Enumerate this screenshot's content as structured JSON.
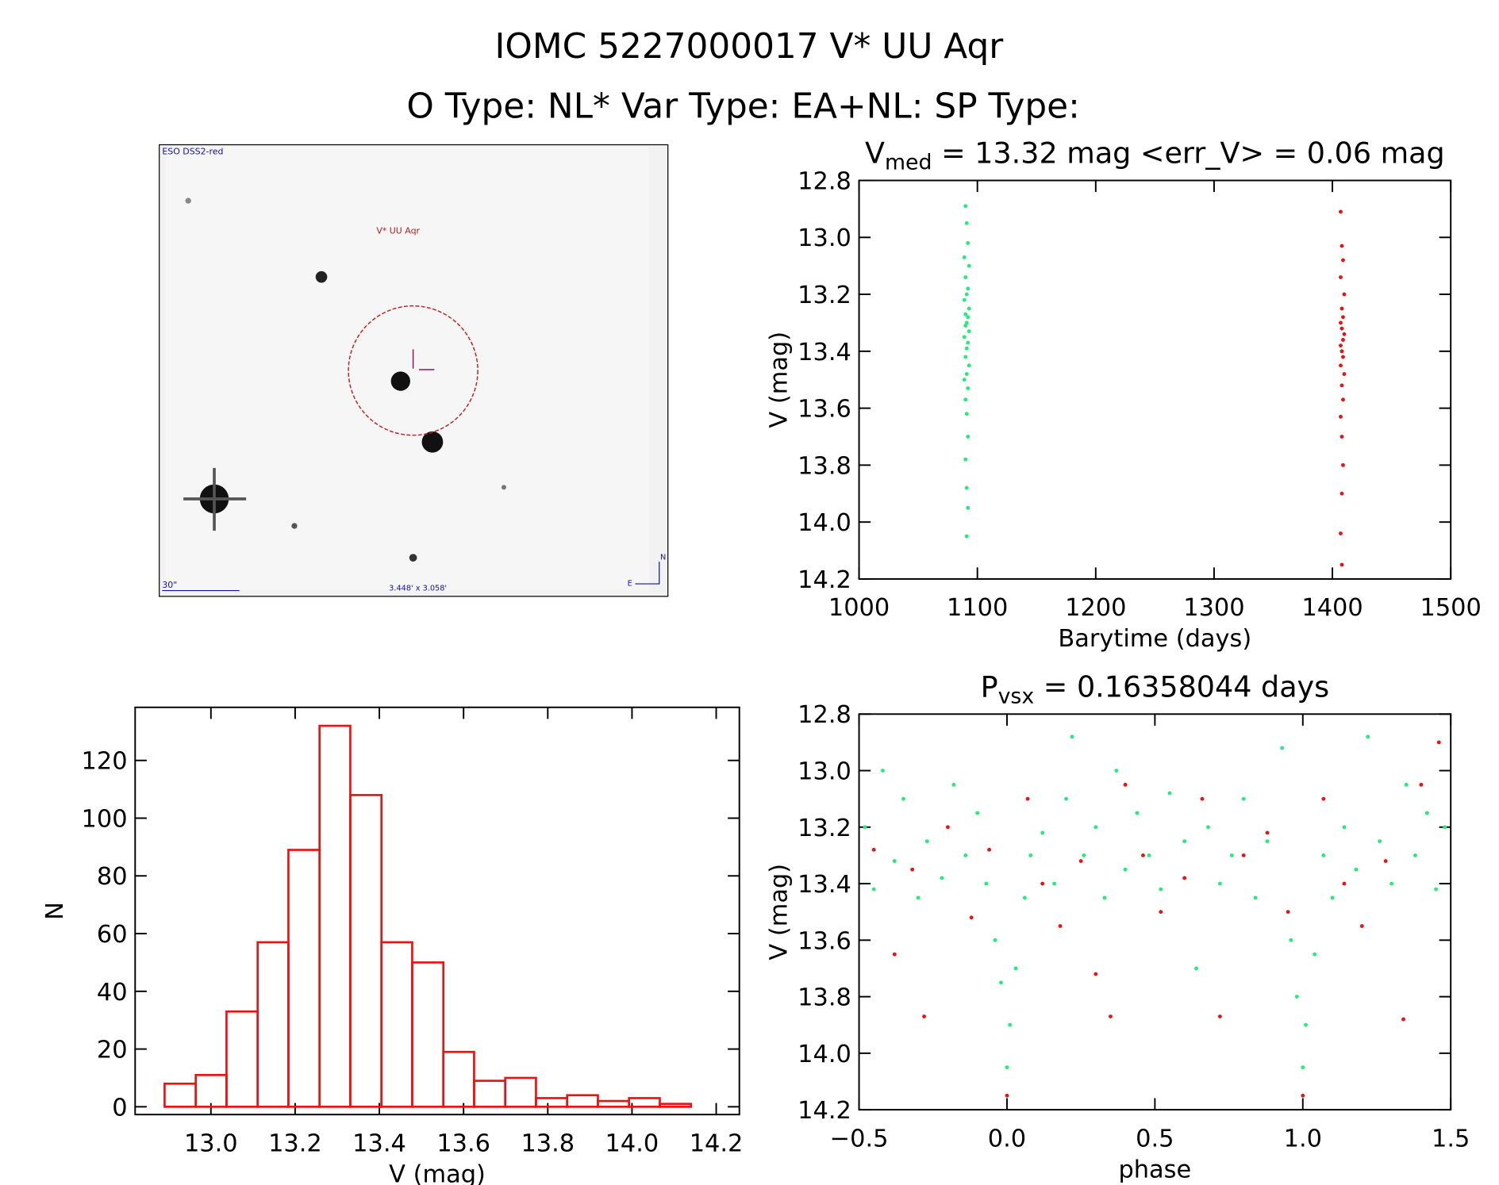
{
  "header": {
    "title": "IOMC 5227000017   V* UU Aqr",
    "subtitle": "O Type: NL*  Var Type: EA+NL:  SP Type:"
  },
  "finder": {
    "survey": "ESO DSS2-red",
    "target": "V* UU Aqr",
    "scale": "30\"",
    "fov": "3.448' x 3.058'",
    "north": "N",
    "east": "E"
  },
  "chart_data": [
    {
      "type": "scatter",
      "title_parts": [
        "V",
        "med",
        " = 13.32 mag <err_V> = 0.06 mag"
      ],
      "x_label": "Barytime (days)",
      "y_label": "V (mag)",
      "xlim": [
        1000,
        1500
      ],
      "xticks": [
        1000,
        1100,
        1200,
        1300,
        1400,
        1500
      ],
      "ylim": [
        14.2,
        12.8
      ],
      "yticks": [
        12.8,
        {
          "value": 13,
          "label": "13.0"
        },
        13.2,
        13.4,
        13.6,
        13.8,
        {
          "value": 14,
          "label": "14.0"
        },
        14.2
      ],
      "series": [
        {
          "color": "#22ee77",
          "x": [
            1090,
            1091,
            1092,
            1089,
            1093,
            1090,
            1092,
            1091,
            1089,
            1093,
            1090,
            1092,
            1091,
            1090,
            1093,
            1089,
            1092,
            1091,
            1090,
            1093,
            1091,
            1089,
            1092,
            1090,
            1091,
            1092,
            1090,
            1091,
            1092,
            1091
          ],
          "values": [
            12.89,
            12.95,
            13.02,
            13.07,
            13.1,
            13.14,
            13.18,
            13.2,
            13.22,
            13.25,
            13.27,
            13.28,
            13.3,
            13.31,
            13.33,
            13.35,
            13.37,
            13.39,
            13.42,
            13.45,
            13.48,
            13.5,
            13.53,
            13.57,
            13.62,
            13.7,
            13.78,
            13.88,
            13.95,
            14.05
          ]
        },
        {
          "color": "#ee1111",
          "x": [
            1407,
            1408,
            1409,
            1407,
            1410,
            1408,
            1409,
            1407,
            1408,
            1410,
            1409,
            1407,
            1408,
            1409,
            1407,
            1410,
            1408,
            1409,
            1407,
            1408,
            1409,
            1408,
            1407,
            1408
          ],
          "values": [
            12.91,
            13.03,
            13.08,
            13.14,
            13.2,
            13.25,
            13.28,
            13.3,
            13.32,
            13.34,
            13.36,
            13.38,
            13.4,
            13.42,
            13.45,
            13.48,
            13.52,
            13.57,
            13.63,
            13.7,
            13.8,
            13.9,
            14.04,
            14.15
          ]
        }
      ]
    },
    {
      "type": "histogram",
      "x_label": "V (mag)",
      "y_label": "N",
      "color": "#ee1111",
      "bins": [
        12.89,
        12.964,
        13.037,
        13.111,
        13.184,
        13.258,
        13.331,
        13.405,
        13.478,
        13.552,
        13.625,
        13.699,
        13.772,
        13.846,
        13.919,
        13.993,
        14.066,
        14.14
      ],
      "values": [
        8,
        11,
        33,
        57,
        89,
        132,
        108,
        57,
        50,
        19,
        9,
        10,
        3,
        4,
        2,
        3,
        1
      ],
      "xlim": [
        12.82,
        14.255
      ],
      "xticks": [
        {
          "value": 13,
          "label": "13.0"
        },
        13.2,
        13.4,
        13.6,
        13.8,
        {
          "value": 14,
          "label": "14.0"
        },
        14.2
      ],
      "ylim": [
        -2.7,
        138.4
      ],
      "yticks": [
        0,
        20,
        40,
        60,
        80,
        100,
        120
      ]
    },
    {
      "type": "scatter",
      "title_parts": [
        "P",
        "vsx",
        " = 0.16358044 days"
      ],
      "x_label": "phase",
      "y_label": "V (mag)",
      "xlim": [
        -0.5,
        1.5
      ],
      "xticks": [
        {
          "value": -0.5,
          "label": "−0.5"
        },
        {
          "value": 0,
          "label": "0.0"
        },
        0.5,
        {
          "value": 1,
          "label": "1.0"
        },
        1.5
      ],
      "ylim": [
        14.2,
        12.8
      ],
      "yticks": [
        12.8,
        {
          "value": 13,
          "label": "13.0"
        },
        13.2,
        13.4,
        13.6,
        13.8,
        {
          "value": 14,
          "label": "14.0"
        },
        14.2
      ],
      "series": [
        {
          "color": "#22ee77",
          "x": [
            -0.48,
            -0.45,
            -0.42,
            -0.38,
            -0.35,
            -0.3,
            -0.27,
            -0.22,
            -0.18,
            -0.14,
            -0.1,
            -0.07,
            -0.04,
            -0.02,
            0.0,
            0.01,
            0.03,
            0.06,
            0.08,
            0.12,
            0.16,
            0.2,
            0.22,
            0.26,
            0.3,
            0.33,
            0.37,
            0.4,
            0.44,
            0.48,
            0.52,
            0.55,
            0.6,
            0.64,
            0.68,
            0.72,
            0.76,
            0.8,
            0.84,
            0.88,
            0.93,
            0.96,
            0.98,
            1.0,
            1.01,
            1.04,
            1.07,
            1.1,
            1.14,
            1.18,
            1.22,
            1.26,
            1.3,
            1.35,
            1.38,
            1.42,
            1.45,
            1.48
          ],
          "values": [
            13.2,
            13.42,
            13.0,
            13.32,
            13.1,
            13.45,
            13.25,
            13.38,
            13.05,
            13.3,
            13.15,
            13.4,
            13.6,
            13.75,
            14.05,
            13.9,
            13.7,
            13.45,
            13.3,
            13.22,
            13.4,
            13.1,
            12.88,
            13.3,
            13.2,
            13.45,
            13.0,
            13.35,
            13.15,
            13.3,
            13.42,
            13.08,
            13.25,
            13.7,
            13.2,
            13.4,
            13.3,
            13.1,
            13.45,
            13.25,
            12.92,
            13.6,
            13.8,
            14.05,
            13.9,
            13.65,
            13.3,
            13.45,
            13.2,
            13.35,
            12.88,
            13.25,
            13.4,
            13.05,
            13.3,
            13.15,
            13.42,
            13.2
          ]
        },
        {
          "color": "#ee1111",
          "x": [
            -0.45,
            -0.38,
            -0.32,
            -0.28,
            -0.2,
            -0.12,
            -0.06,
            0.0,
            0.07,
            0.12,
            0.18,
            0.25,
            0.3,
            0.35,
            0.4,
            0.46,
            0.52,
            0.6,
            0.66,
            0.72,
            0.8,
            0.88,
            0.95,
            1.0,
            1.07,
            1.14,
            1.2,
            1.28,
            1.34,
            1.4,
            1.46
          ],
          "values": [
            13.28,
            13.65,
            13.35,
            13.87,
            13.2,
            13.52,
            13.28,
            14.15,
            13.1,
            13.4,
            13.55,
            13.32,
            13.72,
            13.87,
            13.05,
            13.3,
            13.5,
            13.38,
            13.1,
            13.87,
            13.3,
            13.22,
            13.5,
            14.15,
            13.1,
            13.4,
            13.55,
            13.32,
            13.88,
            13.05,
            12.9
          ]
        }
      ]
    }
  ]
}
